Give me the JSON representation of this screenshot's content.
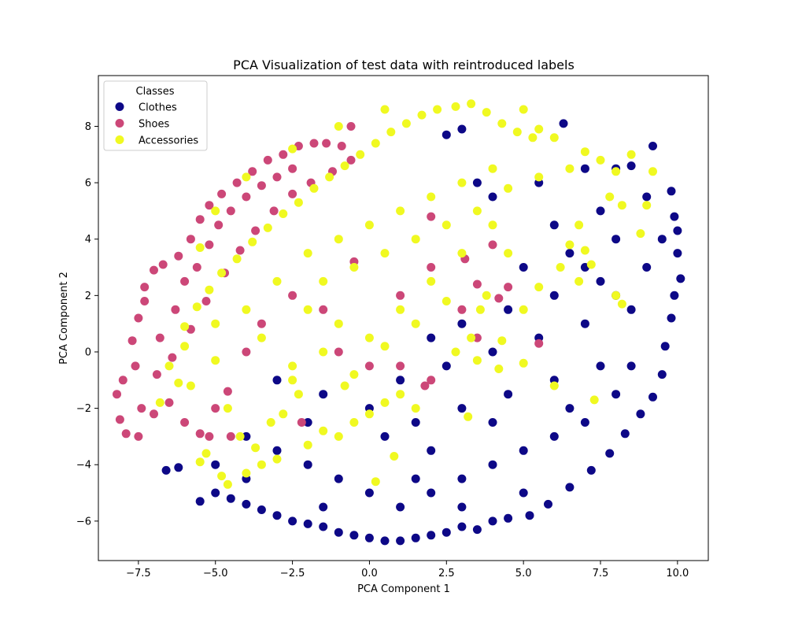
{
  "chart_data": {
    "type": "scatter",
    "title": "PCA Visualization of test data with reintroduced labels",
    "xlabel": "PCA Component 1",
    "ylabel": "PCA Component 2",
    "xlim": [
      -8.8,
      11.0
    ],
    "ylim": [
      -7.4,
      9.8
    ],
    "x_ticks": [
      -7.5,
      -5.0,
      -2.5,
      0.0,
      2.5,
      5.0,
      7.5,
      10.0
    ],
    "x_tick_labels": [
      "−7.5",
      "−5.0",
      "−2.5",
      "0.0",
      "2.5",
      "5.0",
      "7.5",
      "10.0"
    ],
    "y_ticks": [
      -6,
      -4,
      -2,
      0,
      2,
      4,
      6,
      8
    ],
    "y_tick_labels": [
      "−6",
      "−4",
      "−2",
      "0",
      "2",
      "4",
      "6",
      "8"
    ],
    "grid": false,
    "legend": {
      "title": "Classes",
      "placement": "upper-left",
      "entries": [
        "Clothes",
        "Shoes",
        "Accessories"
      ]
    },
    "series": [
      {
        "name": "Clothes",
        "color": "#0d0887",
        "points": [
          [
            -6.6,
            -4.2
          ],
          [
            -6.2,
            -4.1
          ],
          [
            -5.5,
            -5.3
          ],
          [
            -5.0,
            -5.0
          ],
          [
            -4.5,
            -5.2
          ],
          [
            -4.0,
            -5.4
          ],
          [
            -3.5,
            -5.6
          ],
          [
            -3.0,
            -5.8
          ],
          [
            -2.5,
            -6.0
          ],
          [
            -2.0,
            -6.1
          ],
          [
            -1.5,
            -6.2
          ],
          [
            -1.0,
            -6.4
          ],
          [
            -0.5,
            -6.5
          ],
          [
            0.0,
            -6.6
          ],
          [
            0.5,
            -6.7
          ],
          [
            1.0,
            -6.7
          ],
          [
            1.5,
            -6.6
          ],
          [
            2.0,
            -6.5
          ],
          [
            2.5,
            -6.4
          ],
          [
            3.0,
            -6.2
          ],
          [
            3.5,
            -6.3
          ],
          [
            4.0,
            -6.0
          ],
          [
            4.5,
            -5.9
          ],
          [
            5.2,
            -5.8
          ],
          [
            5.8,
            -5.4
          ],
          [
            6.5,
            -4.8
          ],
          [
            7.2,
            -4.2
          ],
          [
            7.8,
            -3.6
          ],
          [
            8.3,
            -2.9
          ],
          [
            8.8,
            -2.2
          ],
          [
            9.2,
            -1.6
          ],
          [
            9.5,
            -0.8
          ],
          [
            9.6,
            0.2
          ],
          [
            9.8,
            1.2
          ],
          [
            9.9,
            2.0
          ],
          [
            10.1,
            2.6
          ],
          [
            10.0,
            3.5
          ],
          [
            10.0,
            4.3
          ],
          [
            9.9,
            4.8
          ],
          [
            9.8,
            5.7
          ],
          [
            9.2,
            7.3
          ],
          [
            8.5,
            6.6
          ],
          [
            8.0,
            6.5
          ],
          [
            6.3,
            8.1
          ],
          [
            3.0,
            7.9
          ],
          [
            2.5,
            7.7
          ],
          [
            -5.0,
            -4.0
          ],
          [
            -4.0,
            -3.0
          ],
          [
            -3.0,
            -3.5
          ],
          [
            -2.0,
            -4.0
          ],
          [
            -1.0,
            -4.5
          ],
          [
            0.0,
            -5.0
          ],
          [
            1.0,
            -5.5
          ],
          [
            2.0,
            -5.0
          ],
          [
            3.0,
            -4.5
          ],
          [
            4.0,
            -4.0
          ],
          [
            5.0,
            -3.5
          ],
          [
            6.0,
            -3.0
          ],
          [
            7.0,
            -2.5
          ],
          [
            8.0,
            -1.5
          ],
          [
            -3.0,
            -1.0
          ],
          [
            -1.5,
            -1.5
          ],
          [
            0.0,
            -2.0
          ],
          [
            1.5,
            -2.5
          ],
          [
            3.0,
            -2.0
          ],
          [
            4.5,
            -1.5
          ],
          [
            6.0,
            -1.0
          ],
          [
            7.5,
            -0.5
          ],
          [
            1.0,
            -1.0
          ],
          [
            2.5,
            -0.5
          ],
          [
            4.0,
            0.0
          ],
          [
            5.5,
            0.5
          ],
          [
            7.0,
            1.0
          ],
          [
            8.5,
            1.5
          ],
          [
            3.0,
            1.0
          ],
          [
            4.5,
            1.5
          ],
          [
            6.0,
            2.0
          ],
          [
            7.5,
            2.5
          ],
          [
            9.0,
            3.0
          ],
          [
            5.0,
            3.0
          ],
          [
            6.5,
            3.5
          ],
          [
            8.0,
            4.0
          ],
          [
            9.5,
            4.0
          ],
          [
            6.0,
            4.5
          ],
          [
            7.5,
            5.0
          ],
          [
            9.0,
            5.5
          ],
          [
            4.0,
            5.5
          ],
          [
            5.5,
            6.0
          ],
          [
            7.0,
            6.5
          ],
          [
            3.5,
            6.0
          ],
          [
            2.0,
            0.5
          ],
          [
            0.5,
            -3.0
          ],
          [
            -2.0,
            -2.5
          ],
          [
            -4.0,
            -4.5
          ],
          [
            2.0,
            -3.5
          ],
          [
            4.0,
            -2.5
          ],
          [
            6.5,
            -2.0
          ],
          [
            8.5,
            -0.5
          ],
          [
            5.0,
            -5.0
          ],
          [
            3.0,
            -5.5
          ],
          [
            -1.5,
            -5.5
          ],
          [
            1.5,
            -4.5
          ],
          [
            7.0,
            3.0
          ],
          [
            8.0,
            2.0
          ]
        ]
      },
      {
        "name": "Shoes",
        "color": "#cc4778",
        "points": [
          [
            -8.0,
            -1.0
          ],
          [
            -8.2,
            -1.5
          ],
          [
            -8.1,
            -2.4
          ],
          [
            -7.9,
            -2.9
          ],
          [
            -7.5,
            -3.0
          ],
          [
            -7.4,
            -2.0
          ],
          [
            -7.6,
            -0.5
          ],
          [
            -7.7,
            0.4
          ],
          [
            -7.5,
            1.2
          ],
          [
            -7.3,
            1.8
          ],
          [
            -7.3,
            2.3
          ],
          [
            -7.0,
            2.9
          ],
          [
            -6.7,
            3.1
          ],
          [
            -6.2,
            3.4
          ],
          [
            -5.8,
            4.0
          ],
          [
            -5.5,
            4.7
          ],
          [
            -5.2,
            5.2
          ],
          [
            -4.8,
            5.6
          ],
          [
            -4.3,
            6.0
          ],
          [
            -3.8,
            6.4
          ],
          [
            -3.3,
            6.8
          ],
          [
            -2.8,
            7.0
          ],
          [
            -2.3,
            7.3
          ],
          [
            -1.8,
            7.4
          ],
          [
            -1.4,
            7.4
          ],
          [
            -0.6,
            8.0
          ],
          [
            -0.9,
            7.3
          ],
          [
            -6.8,
            0.5
          ],
          [
            -6.3,
            1.5
          ],
          [
            -6.0,
            2.5
          ],
          [
            -5.6,
            3.0
          ],
          [
            -5.2,
            3.8
          ],
          [
            -4.9,
            4.5
          ],
          [
            -4.5,
            5.0
          ],
          [
            -4.0,
            5.5
          ],
          [
            -3.5,
            5.9
          ],
          [
            -3.0,
            6.2
          ],
          [
            -2.5,
            6.5
          ],
          [
            -6.9,
            -0.8
          ],
          [
            -6.5,
            -1.8
          ],
          [
            -6.0,
            -2.5
          ],
          [
            -5.5,
            -2.9
          ],
          [
            -7.0,
            -2.2
          ],
          [
            -6.4,
            -0.2
          ],
          [
            -5.8,
            0.8
          ],
          [
            -5.3,
            1.8
          ],
          [
            -4.7,
            2.8
          ],
          [
            -4.2,
            3.6
          ],
          [
            -3.7,
            4.3
          ],
          [
            -3.1,
            5.0
          ],
          [
            -2.5,
            5.6
          ],
          [
            -1.9,
            6.0
          ],
          [
            -1.2,
            6.4
          ],
          [
            -0.6,
            6.8
          ],
          [
            -5.0,
            -2.0
          ],
          [
            -4.6,
            -1.4
          ],
          [
            -4.0,
            0.0
          ],
          [
            -3.5,
            1.0
          ],
          [
            -2.5,
            2.0
          ],
          [
            -1.5,
            1.5
          ],
          [
            -1.0,
            0.0
          ],
          [
            0.0,
            -0.5
          ],
          [
            1.0,
            -0.5
          ],
          [
            2.0,
            -1.0
          ],
          [
            1.8,
            -1.2
          ],
          [
            3.0,
            1.5
          ],
          [
            3.5,
            2.4
          ],
          [
            4.0,
            3.8
          ],
          [
            4.5,
            2.3
          ],
          [
            2.0,
            3.0
          ],
          [
            1.0,
            2.0
          ],
          [
            -0.5,
            3.2
          ],
          [
            3.5,
            0.5
          ],
          [
            -5.2,
            -3.0
          ],
          [
            -4.5,
            -3.0
          ],
          [
            -2.2,
            -2.5
          ],
          [
            5.5,
            0.3
          ],
          [
            4.2,
            1.9
          ],
          [
            3.1,
            3.3
          ],
          [
            2.0,
            4.8
          ]
        ]
      },
      {
        "name": "Accessories",
        "color": "#f0f921",
        "points": [
          [
            -6.8,
            -1.8
          ],
          [
            -6.5,
            -0.5
          ],
          [
            -6.0,
            0.2
          ],
          [
            -5.8,
            -1.2
          ],
          [
            -5.5,
            3.7
          ],
          [
            -5.0,
            1.0
          ],
          [
            -4.8,
            -4.4
          ],
          [
            -4.6,
            -2.0
          ],
          [
            -4.2,
            -3.0
          ],
          [
            -4.0,
            -4.3
          ],
          [
            -3.5,
            -4.0
          ],
          [
            -3.0,
            -3.8
          ],
          [
            -2.8,
            -2.2
          ],
          [
            -2.5,
            -1.0
          ],
          [
            -2.0,
            -3.3
          ],
          [
            -1.5,
            -2.8
          ],
          [
            -1.0,
            -3.0
          ],
          [
            -0.5,
            -2.5
          ],
          [
            0.0,
            -2.2
          ],
          [
            0.5,
            -1.8
          ],
          [
            1.0,
            -1.5
          ],
          [
            1.5,
            -2.0
          ],
          [
            0.2,
            -4.6
          ],
          [
            0.8,
            -3.7
          ],
          [
            -6.0,
            0.9
          ],
          [
            -5.6,
            1.6
          ],
          [
            -5.2,
            2.2
          ],
          [
            -4.8,
            2.8
          ],
          [
            -4.3,
            3.3
          ],
          [
            -3.8,
            3.9
          ],
          [
            -3.3,
            4.4
          ],
          [
            -2.8,
            4.9
          ],
          [
            -2.3,
            5.3
          ],
          [
            -1.8,
            5.8
          ],
          [
            -1.3,
            6.2
          ],
          [
            -0.8,
            6.6
          ],
          [
            -0.3,
            7.0
          ],
          [
            0.2,
            7.4
          ],
          [
            0.7,
            7.8
          ],
          [
            1.2,
            8.1
          ],
          [
            1.7,
            8.4
          ],
          [
            2.2,
            8.6
          ],
          [
            2.8,
            8.7
          ],
          [
            3.3,
            8.8
          ],
          [
            3.8,
            8.5
          ],
          [
            4.3,
            8.1
          ],
          [
            4.8,
            7.8
          ],
          [
            5.3,
            7.6
          ],
          [
            5.0,
            8.6
          ],
          [
            5.5,
            7.9
          ],
          [
            6.0,
            7.6
          ],
          [
            0.5,
            8.6
          ],
          [
            -1.0,
            8.0
          ],
          [
            -2.5,
            7.2
          ],
          [
            -4.0,
            6.2
          ],
          [
            -5.0,
            5.0
          ],
          [
            -3.0,
            2.5
          ],
          [
            -2.0,
            1.5
          ],
          [
            -1.0,
            1.0
          ],
          [
            0.0,
            0.5
          ],
          [
            1.0,
            1.5
          ],
          [
            2.0,
            2.5
          ],
          [
            3.0,
            3.5
          ],
          [
            -3.5,
            0.5
          ],
          [
            -2.5,
            -0.5
          ],
          [
            -1.5,
            0.0
          ],
          [
            -0.5,
            -0.8
          ],
          [
            0.5,
            0.2
          ],
          [
            1.5,
            1.0
          ],
          [
            2.5,
            1.8
          ],
          [
            -2.0,
            3.5
          ],
          [
            -1.0,
            4.0
          ],
          [
            0.0,
            4.5
          ],
          [
            1.0,
            5.0
          ],
          [
            2.0,
            5.5
          ],
          [
            3.0,
            6.0
          ],
          [
            4.0,
            6.5
          ],
          [
            -1.5,
            2.5
          ],
          [
            -0.5,
            3.0
          ],
          [
            0.5,
            3.5
          ],
          [
            1.5,
            4.0
          ],
          [
            2.5,
            4.5
          ],
          [
            3.5,
            5.0
          ],
          [
            4.5,
            5.8
          ],
          [
            5.5,
            6.2
          ],
          [
            6.5,
            6.5
          ],
          [
            7.5,
            6.8
          ],
          [
            8.5,
            7.0
          ],
          [
            7.0,
            7.1
          ],
          [
            8.0,
            6.4
          ],
          [
            9.2,
            6.4
          ],
          [
            7.8,
            5.5
          ],
          [
            8.2,
            5.2
          ],
          [
            6.8,
            4.5
          ],
          [
            6.5,
            3.8
          ],
          [
            7.0,
            3.6
          ],
          [
            4.0,
            4.5
          ],
          [
            4.5,
            3.5
          ],
          [
            3.8,
            2.0
          ],
          [
            3.6,
            1.5
          ],
          [
            3.3,
            0.5
          ],
          [
            2.8,
            0.0
          ],
          [
            5.0,
            1.5
          ],
          [
            4.3,
            0.4
          ],
          [
            5.5,
            2.3
          ],
          [
            6.2,
            3.0
          ],
          [
            7.2,
            3.1
          ],
          [
            6.8,
            2.5
          ],
          [
            8.0,
            2.0
          ],
          [
            8.2,
            1.7
          ],
          [
            5.0,
            -0.4
          ],
          [
            4.2,
            -0.6
          ],
          [
            3.5,
            -0.3
          ],
          [
            6.0,
            -1.2
          ],
          [
            7.3,
            -1.7
          ],
          [
            3.2,
            -2.3
          ],
          [
            9.0,
            5.2
          ],
          [
            8.8,
            4.2
          ],
          [
            -3.2,
            -2.5
          ],
          [
            -3.7,
            -3.4
          ],
          [
            -5.3,
            -3.6
          ],
          [
            -4.6,
            -4.7
          ],
          [
            -5.5,
            -3.9
          ],
          [
            -2.3,
            -1.5
          ],
          [
            -0.8,
            -1.2
          ],
          [
            -6.2,
            -1.1
          ],
          [
            -5.0,
            -0.3
          ],
          [
            -4.0,
            1.5
          ]
        ]
      }
    ]
  }
}
